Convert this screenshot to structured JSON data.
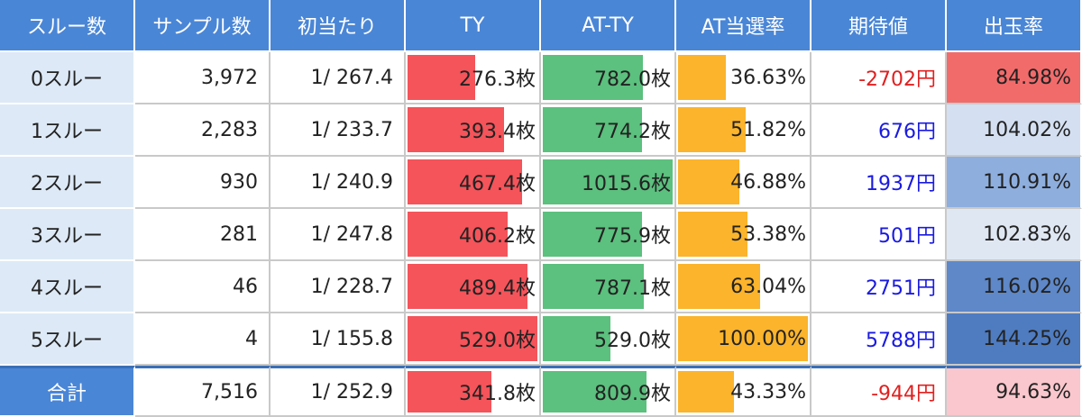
{
  "headers": [
    "スルー数",
    "サンプル数",
    "初当たり",
    "TY",
    "AT-TY",
    "AT当選率",
    "期待値",
    "出玉率"
  ],
  "colors": {
    "header_bg": "#4a86d6",
    "row_label_bg": "#dde9f6",
    "ty_bar": "#f4545a",
    "atty_bar": "#5cc07e",
    "rate_bar": "#fbb42c",
    "negative_text": "#e02020",
    "positive_text": "#1a1ae0"
  },
  "rows": [
    {
      "label": "0スルー",
      "samples": "3,972",
      "first_hit": "1/ 267.4",
      "ty": "276.3枚",
      "ty_val": 276.3,
      "atty": "782.0枚",
      "atty_val": 782.0,
      "at_rate": "36.63%",
      "at_rate_val": 36.63,
      "expected": "-2702円",
      "expected_sign": "neg",
      "payout": "84.98%",
      "payout_bg": "#f26b6b"
    },
    {
      "label": "1スルー",
      "samples": "2,283",
      "first_hit": "1/ 233.7",
      "ty": "393.4枚",
      "ty_val": 393.4,
      "atty": "774.2枚",
      "atty_val": 774.2,
      "at_rate": "51.82%",
      "at_rate_val": 51.82,
      "expected": "676円",
      "expected_sign": "pos",
      "payout": "104.02%",
      "payout_bg": "#d4e0f1"
    },
    {
      "label": "2スルー",
      "samples": "930",
      "first_hit": "1/ 240.9",
      "ty": "467.4枚",
      "ty_val": 467.4,
      "atty": "1015.6枚",
      "atty_val": 1015.6,
      "at_rate": "46.88%",
      "at_rate_val": 46.88,
      "expected": "1937円",
      "expected_sign": "pos",
      "payout": "110.91%",
      "payout_bg": "#8eaede"
    },
    {
      "label": "3スルー",
      "samples": "281",
      "first_hit": "1/ 247.8",
      "ty": "406.2枚",
      "ty_val": 406.2,
      "atty": "775.9枚",
      "atty_val": 775.9,
      "at_rate": "53.38%",
      "at_rate_val": 53.38,
      "expected": "501円",
      "expected_sign": "pos",
      "payout": "102.83%",
      "payout_bg": "#dfe7f3"
    },
    {
      "label": "4スルー",
      "samples": "46",
      "first_hit": "1/ 228.7",
      "ty": "489.4枚",
      "ty_val": 489.4,
      "atty": "787.1枚",
      "atty_val": 787.1,
      "at_rate": "63.04%",
      "at_rate_val": 63.04,
      "expected": "2751円",
      "expected_sign": "pos",
      "payout": "116.02%",
      "payout_bg": "#5e88c8"
    },
    {
      "label": "5スルー",
      "samples": "4",
      "first_hit": "1/ 155.8",
      "ty": "529.0枚",
      "ty_val": 529.0,
      "atty": "529.0枚",
      "atty_val": 529.0,
      "at_rate": "100.00%",
      "at_rate_val": 100.0,
      "expected": "5788円",
      "expected_sign": "pos",
      "payout": "144.25%",
      "payout_bg": "#4f7cc0"
    }
  ],
  "total": {
    "label": "合計",
    "samples": "7,516",
    "first_hit": "1/ 252.9",
    "ty": "341.8枚",
    "ty_val": 341.8,
    "atty": "809.9枚",
    "atty_val": 809.9,
    "at_rate": "43.33%",
    "at_rate_val": 43.33,
    "expected": "-944円",
    "expected_sign": "neg",
    "payout": "94.63%",
    "payout_bg": "#f9c7cd"
  }
}
